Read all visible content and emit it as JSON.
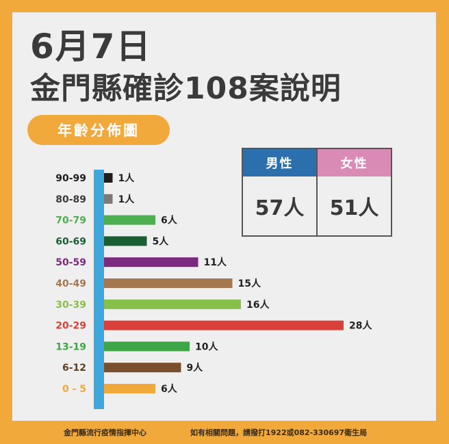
{
  "header": {
    "date": "6月7日",
    "headline": "金門縣確診108案說明"
  },
  "gender": {
    "male_label": "男性",
    "male_value": "57人",
    "male_color": "#2b6fad",
    "female_label": "女性",
    "female_value": "51人",
    "female_color": "#d98bb6"
  },
  "footer": {
    "left": "金門縣流行疫情指揮中心",
    "right": "如有相關問題，請撥打1922或082-330697衛生局"
  },
  "chart_data": {
    "type": "bar",
    "orientation": "horizontal",
    "title": "年齡分佈圖",
    "axis_color": "#3fa7db",
    "categories": [
      "90-99",
      "80-89",
      "70-79",
      "60-69",
      "50-59",
      "40-49",
      "30-39",
      "20-29",
      "13-19",
      "6-12",
      "0 - 5"
    ],
    "values": [
      1,
      1,
      6,
      5,
      11,
      15,
      16,
      28,
      10,
      9,
      6
    ],
    "value_labels": [
      "1人",
      "1人",
      "6人",
      "5人",
      "11人",
      "15人",
      "16人",
      "28人",
      "10人",
      "9人",
      "6人"
    ],
    "colors": [
      "#1e1e1e",
      "#7a7a7a",
      "#4caf50",
      "#1b5e34",
      "#7b2a7f",
      "#a67850",
      "#86bf4a",
      "#d9403a",
      "#3fa648",
      "#7a4f2e",
      "#f2a93b"
    ],
    "label_colors": [
      "#1e1e1e",
      "#3a3a3a",
      "#4caf50",
      "#1b5e34",
      "#7b2a7f",
      "#a67850",
      "#86bf4a",
      "#d9403a",
      "#3fa648",
      "#5a3e26",
      "#f2a93b"
    ],
    "xlim": [
      0,
      28
    ]
  }
}
